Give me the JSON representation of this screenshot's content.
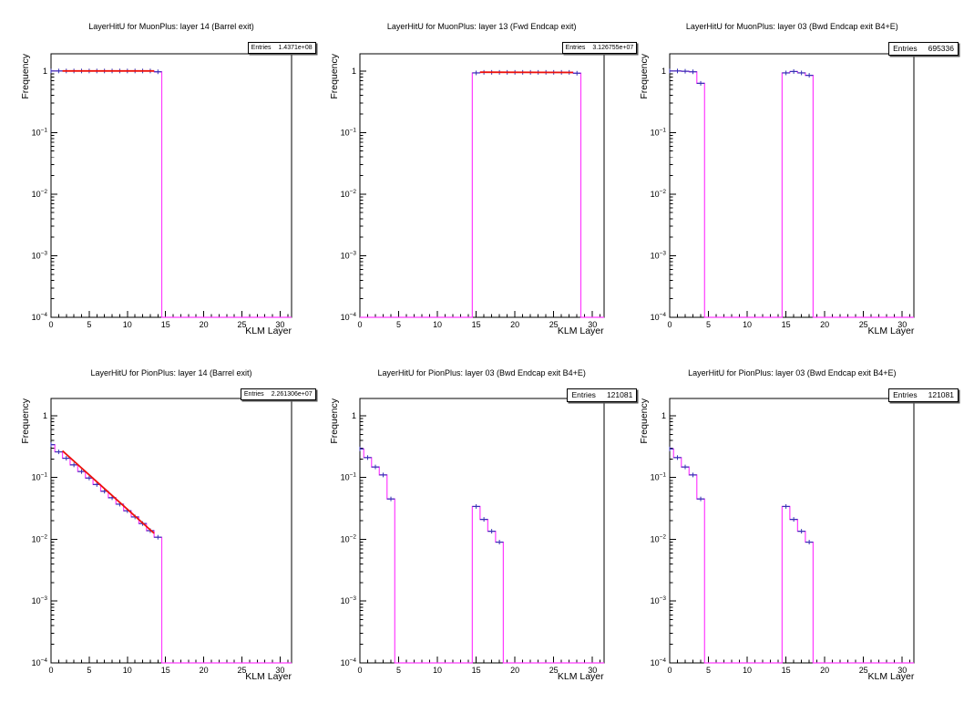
{
  "stats_label": "Entries",
  "axis": {
    "xlabel": "KLM Layer",
    "ylabel": "Frequency",
    "xlim": [
      0,
      31.5
    ],
    "ylim": [
      0.0001,
      1.9
    ],
    "yscale": "log",
    "grid": false,
    "x_ticks": [
      0,
      5,
      10,
      15,
      20,
      25,
      30
    ],
    "x_minor_step": 1,
    "y_tick_exponents": [
      0,
      -1,
      -2,
      -3,
      -4
    ]
  },
  "colors": {
    "histogram": "#ff3cff",
    "data_points": "#3632b4",
    "fit_line": "#ed120c",
    "frame": "#000000",
    "background": "#ffffff"
  },
  "chart_data": [
    {
      "type": "bar",
      "title": "LayerHitU for MuonPlus: layer 14 (Barrel exit)",
      "entries": "1.4371e+08",
      "bin_width": 1,
      "x": [
        0,
        1,
        2,
        3,
        4,
        5,
        6,
        7,
        8,
        9,
        10,
        11,
        12,
        13,
        14
      ],
      "y": [
        1.0,
        1.0,
        1.0,
        1.0,
        1.0,
        1.0,
        1.0,
        1.0,
        1.0,
        1.0,
        1.0,
        1.0,
        1.0,
        1.0,
        0.97
      ],
      "fit": {
        "x": [
          1.5,
          13.5
        ],
        "y": [
          1.0,
          1.0
        ]
      }
    },
    {
      "type": "bar",
      "title": "LayerHitU for MuonPlus: layer 13 (Fwd Endcap exit)",
      "entries": "3.126755e+07",
      "bin_width": 1,
      "x": [
        15,
        16,
        17,
        18,
        19,
        20,
        21,
        22,
        23,
        24,
        25,
        26,
        27,
        28
      ],
      "y": [
        0.93,
        0.95,
        0.95,
        0.95,
        0.95,
        0.95,
        0.95,
        0.95,
        0.95,
        0.95,
        0.95,
        0.95,
        0.95,
        0.92
      ],
      "fit": {
        "x": [
          15.5,
          27.5
        ],
        "y": [
          0.955,
          0.945
        ]
      }
    },
    {
      "type": "bar",
      "title": "LayerHitU for MuonPlus: layer 03 (Bwd Endcap exit B4+E)",
      "entries": "695336",
      "bin_width": 1,
      "x": [
        0,
        1,
        2,
        3,
        4,
        15,
        16,
        17,
        18
      ],
      "y": [
        1.0,
        1.0,
        0.99,
        0.97,
        0.63,
        0.93,
        0.98,
        0.93,
        0.85
      ],
      "fit": null
    },
    {
      "type": "bar",
      "title": "LayerHitU for PionPlus: layer 14 (Barrel exit)",
      "entries": "2.261306e+07",
      "bin_width": 1,
      "x": [
        0,
        1,
        2,
        3,
        4,
        5,
        6,
        7,
        8,
        9,
        10,
        11,
        12,
        13,
        14
      ],
      "y": [
        0.34,
        0.26,
        0.205,
        0.16,
        0.125,
        0.098,
        0.077,
        0.06,
        0.047,
        0.037,
        0.029,
        0.023,
        0.018,
        0.0138,
        0.0108
      ],
      "fit": {
        "x": [
          1.5,
          13.5
        ],
        "y": [
          0.27,
          0.0125
        ]
      }
    },
    {
      "type": "bar",
      "title": "LayerHitU for PionPlus: layer 03 (Bwd Endcap exit B4+E)",
      "entries": "121081",
      "bin_width": 1,
      "x": [
        0,
        1,
        2,
        3,
        4,
        15,
        16,
        17,
        18
      ],
      "y": [
        0.29,
        0.21,
        0.148,
        0.11,
        0.045,
        0.034,
        0.021,
        0.0135,
        0.009
      ],
      "fit": null
    },
    {
      "type": "bar",
      "title": "LayerHitU for PionPlus: layer 03 (Bwd Endcap exit B4+E)",
      "entries": "121081",
      "bin_width": 1,
      "x": [
        0,
        1,
        2,
        3,
        4,
        15,
        16,
        17,
        18
      ],
      "y": [
        0.29,
        0.21,
        0.148,
        0.11,
        0.045,
        0.034,
        0.021,
        0.0135,
        0.009
      ],
      "fit": null
    }
  ]
}
